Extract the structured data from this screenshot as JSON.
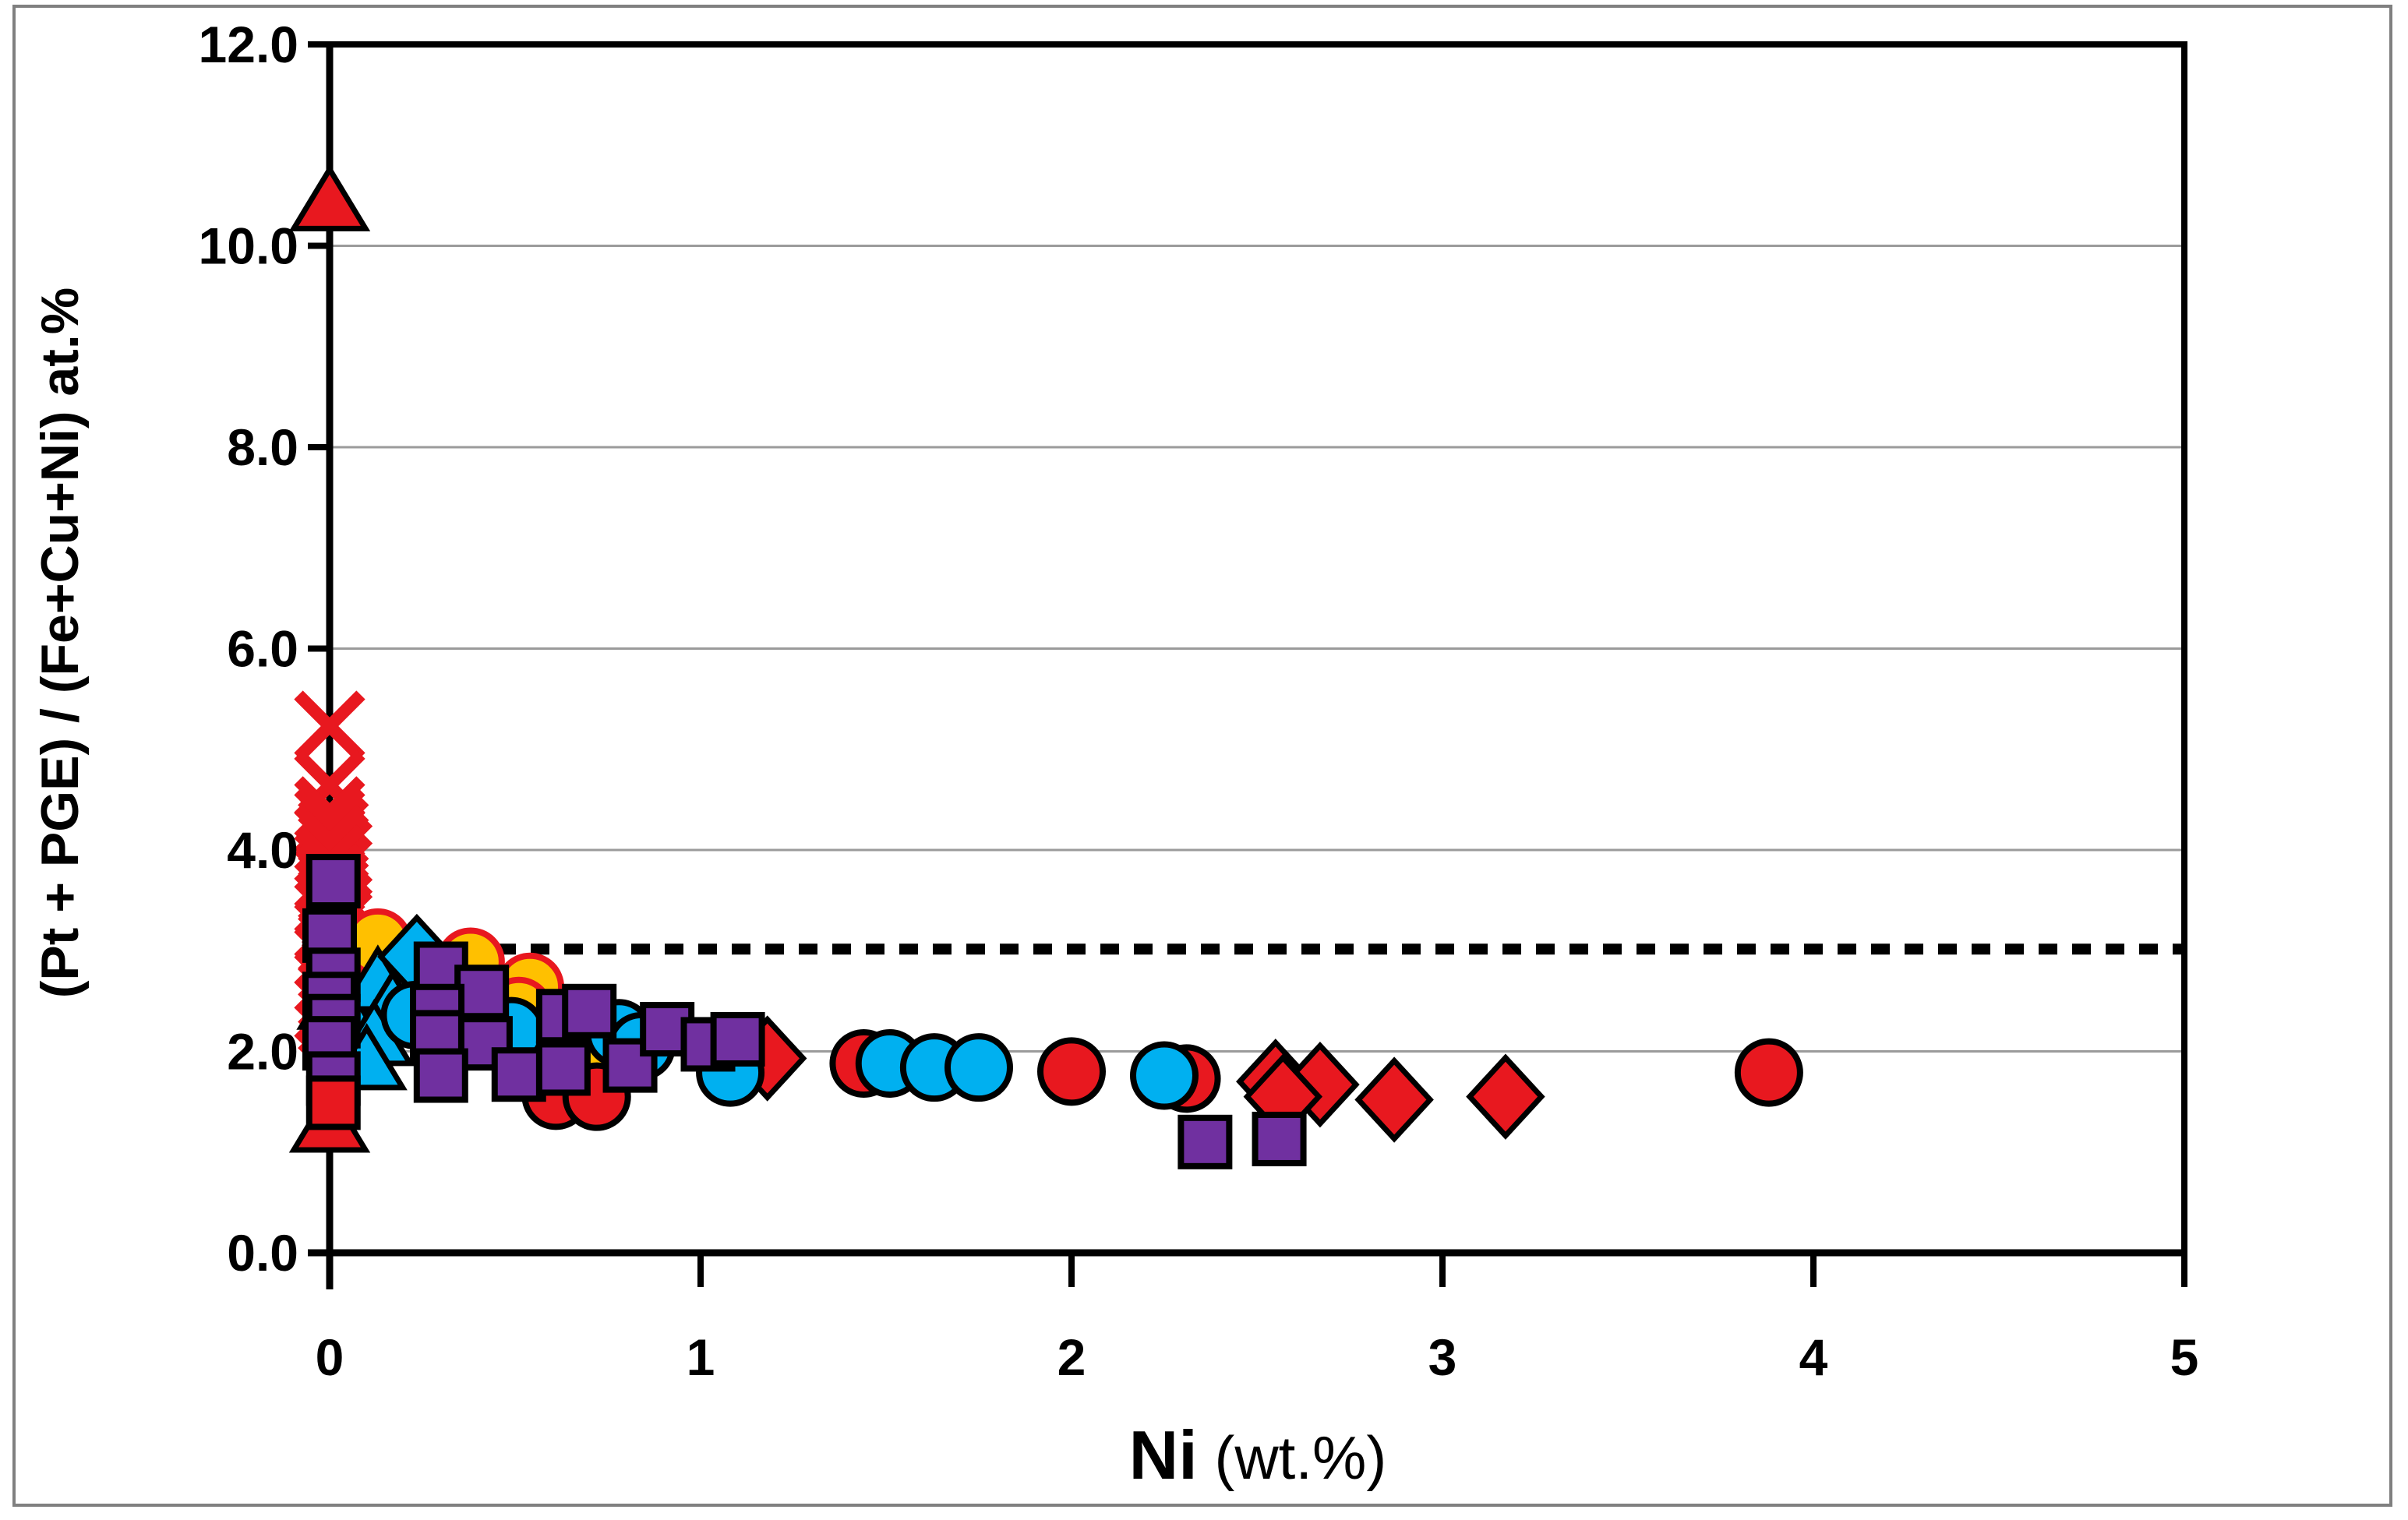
{
  "chart_data": {
    "type": "scatter",
    "title": "",
    "xlabel": "Ni (wt.%)",
    "xlabel_main": "Ni",
    "xlabel_unit": " (wt.%)",
    "ylabel": "(Pt + PGE) / (Fe+Cu+Ni) at.%",
    "xlim": [
      0,
      5
    ],
    "ylim": [
      0,
      12
    ],
    "x_ticks": [
      0,
      1,
      2,
      3,
      4,
      5
    ],
    "x_tick_labels": [
      "0",
      "1",
      "2",
      "3",
      "4",
      "5"
    ],
    "y_ticks": [
      0,
      2,
      4,
      6,
      8,
      10,
      12
    ],
    "y_tick_labels": [
      "0.0",
      "2.0",
      "4.0",
      "6.0",
      "8.0",
      "10.0",
      "12.0"
    ],
    "grid": "horizontal",
    "legend": "none",
    "ref_line": {
      "y": 3.0,
      "style": "dotted",
      "color": "#000000",
      "x_start": 0,
      "x_end": 5
    },
    "colors": {
      "red": "#e8181f",
      "purple": "#7030A0",
      "cyan": "#00B0F0",
      "yellow": "#FFC000",
      "marker_outline": "#000000",
      "gridline": "#9b9b9b",
      "axis": "#000000",
      "outer_frame": "#808080"
    },
    "series": [
      {
        "name": "red-x",
        "marker": "x",
        "fill": "#e8181f",
        "stroke": "#e8181f",
        "points": [
          [
            0,
            5.23
          ],
          [
            0,
            4.64
          ],
          [
            0,
            4.38
          ],
          [
            0,
            4.28
          ],
          [
            0.01,
            4.18
          ],
          [
            0,
            4.1
          ],
          [
            0.01,
            4.03
          ],
          [
            0.02,
            3.97
          ],
          [
            0,
            3.9
          ],
          [
            0.02,
            3.8
          ],
          [
            0,
            3.7
          ],
          [
            0.01,
            3.58
          ],
          [
            0,
            3.45
          ],
          [
            0.02,
            3.32
          ],
          [
            0,
            3.2
          ],
          [
            0.01,
            3.08
          ],
          [
            0,
            2.95
          ],
          [
            0.02,
            2.82
          ],
          [
            0,
            2.7
          ],
          [
            0.01,
            2.56
          ],
          [
            0,
            2.42
          ],
          [
            0.01,
            2.3
          ]
        ]
      },
      {
        "name": "yellow-circle",
        "marker": "circle",
        "fill": "#FFC000",
        "stroke": "#e8181f",
        "points": [
          [
            0.13,
            3.08
          ],
          [
            0.38,
            2.89
          ],
          [
            0.54,
            2.64
          ],
          [
            0.51,
            2.4
          ],
          [
            0.68,
            1.74
          ]
        ]
      },
      {
        "name": "cyan-triangle",
        "marker": "triangle",
        "fill": "#00B0F0",
        "stroke": "#000000",
        "points": [
          [
            0.02,
            2.52
          ],
          [
            0.13,
            2.7
          ],
          [
            0.17,
            2.46
          ],
          [
            0.12,
            2.16
          ],
          [
            0.1,
            1.92
          ]
        ]
      },
      {
        "name": "cyan-diamond",
        "marker": "diamond",
        "fill": "#00B0F0",
        "stroke": "#000000",
        "points": [
          [
            0.235,
            2.94
          ]
        ]
      },
      {
        "name": "red-circle",
        "marker": "circle",
        "fill": "#e8181f",
        "stroke": "#000000",
        "points": [
          [
            0.61,
            1.56
          ],
          [
            0.72,
            1.55
          ],
          [
            1.44,
            1.88
          ],
          [
            2.0,
            1.8
          ],
          [
            2.31,
            1.73
          ],
          [
            3.88,
            1.79
          ]
        ]
      },
      {
        "name": "red-diamond",
        "marker": "diamond",
        "fill": "#e8181f",
        "stroke": "#000000",
        "points": [
          [
            1.18,
            1.93
          ],
          [
            2.55,
            1.7
          ],
          [
            2.67,
            1.67
          ],
          [
            2.57,
            1.55
          ],
          [
            2.87,
            1.52
          ],
          [
            3.17,
            1.55
          ]
        ]
      },
      {
        "name": "cyan-circle",
        "marker": "circle",
        "fill": "#00B0F0",
        "stroke": "#000000",
        "points": [
          [
            0.23,
            2.36
          ],
          [
            0.49,
            2.2
          ],
          [
            0.78,
            2.18
          ],
          [
            0.84,
            2.05
          ],
          [
            1.08,
            1.79
          ],
          [
            1.51,
            1.88
          ],
          [
            1.63,
            1.84
          ],
          [
            1.75,
            1.84
          ],
          [
            2.25,
            1.76
          ]
        ]
      },
      {
        "name": "red-triangle",
        "marker": "triangle",
        "fill": "#e8181f",
        "stroke": "#000000",
        "points": [
          [
            0,
            10.45
          ],
          [
            0,
            1.3
          ]
        ]
      },
      {
        "name": "purple-square",
        "marker": "square",
        "fill": "#7030A0",
        "stroke": "#000000",
        "points": [
          [
            0.01,
            3.69
          ],
          [
            0,
            3.15
          ],
          [
            0.01,
            2.76
          ],
          [
            0,
            2.52
          ],
          [
            0.01,
            2.3
          ],
          [
            0,
            2.08
          ],
          [
            0.01,
            1.73
          ],
          [
            0.3,
            2.82
          ],
          [
            0.41,
            2.59
          ],
          [
            0.29,
            2.4
          ],
          [
            0.29,
            2.14
          ],
          [
            0.42,
            2.08
          ],
          [
            0.3,
            1.76
          ],
          [
            0.51,
            1.77
          ],
          [
            0.63,
            2.35
          ],
          [
            0.7,
            2.4
          ],
          [
            0.63,
            1.83
          ],
          [
            0.81,
            1.86
          ],
          [
            0.91,
            2.22
          ],
          [
            1.02,
            2.07
          ],
          [
            1.1,
            2.12
          ],
          [
            2.36,
            1.1
          ],
          [
            2.56,
            1.13
          ]
        ]
      },
      {
        "name": "red-square",
        "marker": "square",
        "fill": "#e8181f",
        "stroke": "#000000",
        "points": [
          [
            0.01,
            1.49
          ]
        ]
      }
    ]
  }
}
